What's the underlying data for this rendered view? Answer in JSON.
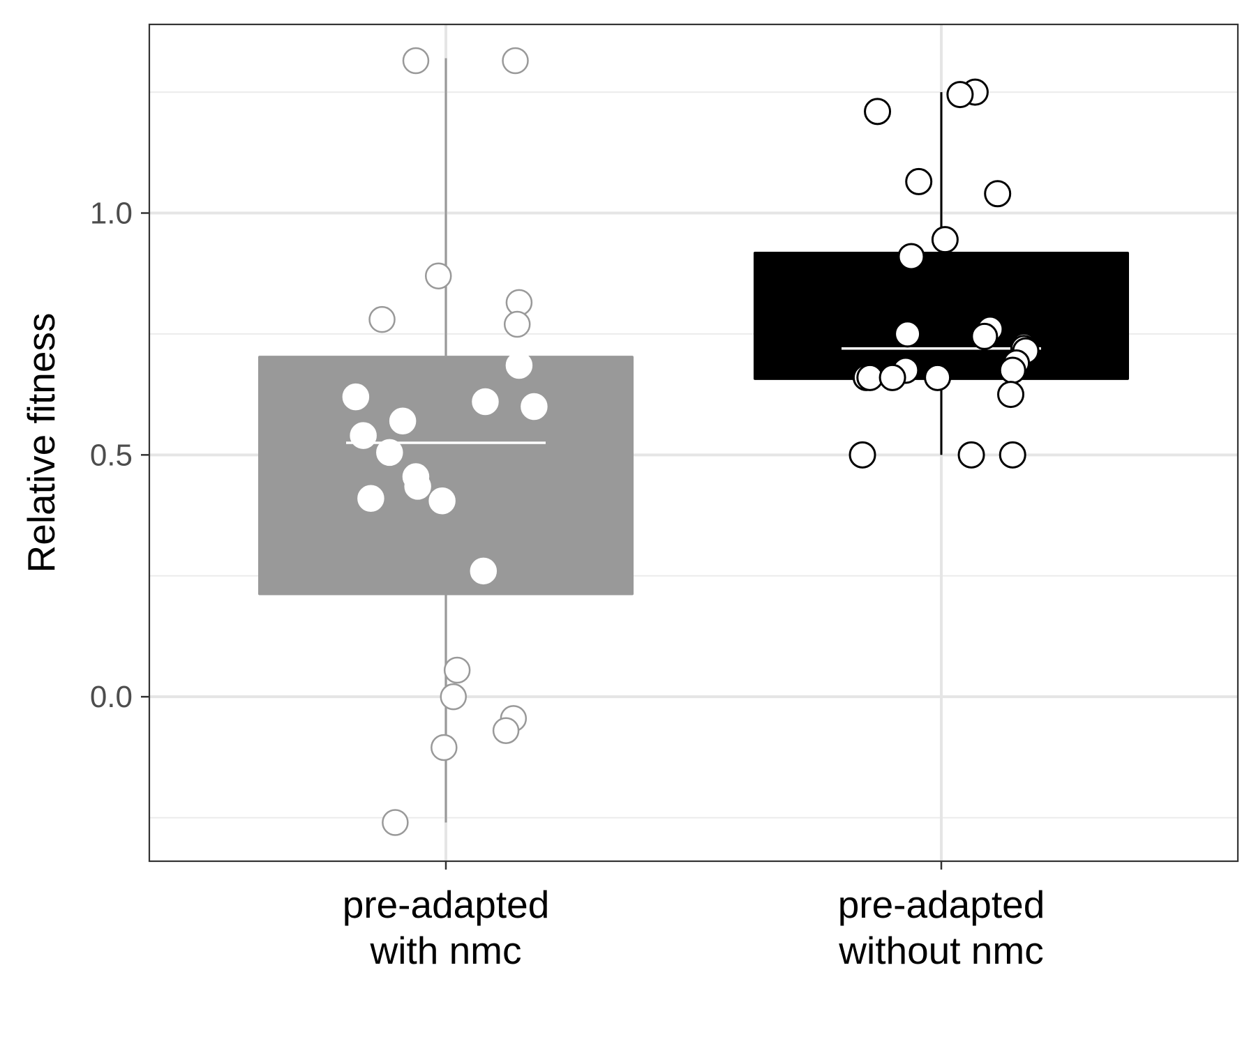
{
  "chart_data": {
    "type": "boxplot",
    "title": "",
    "xlabel": "",
    "ylabel": "Relative fitness",
    "ylim": [
      -0.34,
      1.39
    ],
    "y_ticks": [
      0.0,
      0.5,
      1.0
    ],
    "y_tick_labels": [
      "0.0",
      "0.5",
      "1.0"
    ],
    "y_minor_gridlines": [
      -0.25,
      0.25,
      0.75,
      1.25
    ],
    "grid": true,
    "legend": "none",
    "categories": [
      {
        "lines": [
          "pre-adapted",
          "with nmc"
        ]
      },
      {
        "lines": [
          "pre-adapted",
          "without nmc"
        ]
      }
    ],
    "series": [
      {
        "category_index": 0,
        "box_color": "#999999",
        "median_color": "#ffffff",
        "whisker_low": -0.26,
        "q1": 0.21,
        "median": 0.525,
        "q3": 0.705,
        "whisker_high": 1.32,
        "points": [
          {
            "y": 1.315,
            "dx": -0.08
          },
          {
            "y": 1.315,
            "dx": 0.185
          },
          {
            "y": 0.87,
            "dx": -0.02
          },
          {
            "y": 0.815,
            "dx": 0.195
          },
          {
            "y": 0.78,
            "dx": -0.17
          },
          {
            "y": 0.77,
            "dx": 0.19
          },
          {
            "y": 0.685,
            "dx": 0.195
          },
          {
            "y": 0.62,
            "dx": -0.24
          },
          {
            "y": 0.61,
            "dx": 0.105
          },
          {
            "y": 0.6,
            "dx": 0.235
          },
          {
            "y": 0.57,
            "dx": -0.115
          },
          {
            "y": 0.54,
            "dx": -0.22
          },
          {
            "y": 0.505,
            "dx": -0.15
          },
          {
            "y": 0.455,
            "dx": -0.08
          },
          {
            "y": 0.435,
            "dx": -0.075
          },
          {
            "y": 0.41,
            "dx": -0.2
          },
          {
            "y": 0.405,
            "dx": -0.01
          },
          {
            "y": 0.26,
            "dx": 0.1
          },
          {
            "y": 0.055,
            "dx": 0.03
          },
          {
            "y": 0.0,
            "dx": 0.02
          },
          {
            "y": -0.045,
            "dx": 0.18
          },
          {
            "y": -0.07,
            "dx": 0.16
          },
          {
            "y": -0.105,
            "dx": -0.005
          },
          {
            "y": -0.26,
            "dx": -0.135
          }
        ]
      },
      {
        "category_index": 1,
        "box_color": "#000000",
        "median_color": "#ffffff",
        "whisker_low": 0.5,
        "q1": 0.655,
        "median": 0.72,
        "q3": 0.92,
        "whisker_high": 1.25,
        "points": [
          {
            "y": 1.25,
            "dx": 0.09
          },
          {
            "y": 1.245,
            "dx": 0.05
          },
          {
            "y": 1.21,
            "dx": -0.17
          },
          {
            "y": 1.065,
            "dx": -0.06
          },
          {
            "y": 1.04,
            "dx": 0.15
          },
          {
            "y": 0.945,
            "dx": 0.01
          },
          {
            "y": 0.91,
            "dx": -0.08
          },
          {
            "y": 0.76,
            "dx": 0.13
          },
          {
            "y": 0.75,
            "dx": -0.09
          },
          {
            "y": 0.745,
            "dx": 0.115
          },
          {
            "y": 0.725,
            "dx": 0.22
          },
          {
            "y": 0.72,
            "dx": 0.22
          },
          {
            "y": 0.715,
            "dx": 0.225
          },
          {
            "y": 0.69,
            "dx": 0.2
          },
          {
            "y": 0.675,
            "dx": 0.19
          },
          {
            "y": 0.675,
            "dx": -0.095
          },
          {
            "y": 0.66,
            "dx": -0.2
          },
          {
            "y": 0.66,
            "dx": -0.19
          },
          {
            "y": 0.66,
            "dx": -0.13
          },
          {
            "y": 0.66,
            "dx": -0.01
          },
          {
            "y": 0.625,
            "dx": 0.185
          },
          {
            "y": 0.5,
            "dx": -0.21
          },
          {
            "y": 0.5,
            "dx": 0.08
          },
          {
            "y": 0.5,
            "dx": 0.19
          }
        ]
      }
    ]
  }
}
